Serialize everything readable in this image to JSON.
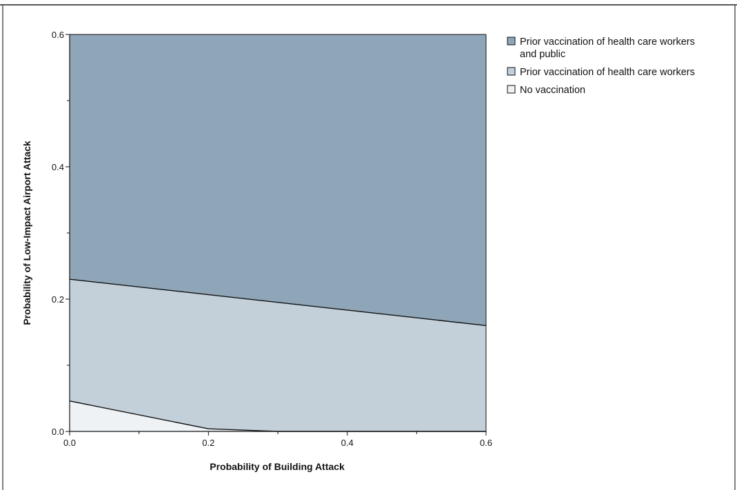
{
  "chart_data": {
    "type": "area",
    "title": "",
    "xlabel": "Probability of Building Attack",
    "ylabel": "Probability of Low-Impact Airport Attack",
    "xlim": [
      0,
      0.6
    ],
    "ylim": [
      0,
      0.6
    ],
    "x_ticks": [
      0.0,
      0.2,
      0.4,
      0.6
    ],
    "x_tick_labels": [
      "0.0",
      "0.2",
      "0.4",
      "0.6"
    ],
    "x_minor_ticks": [
      0.1,
      0.3,
      0.5
    ],
    "y_ticks": [
      0.0,
      0.2,
      0.4,
      0.6
    ],
    "y_tick_labels": [
      "0.0",
      "0.2",
      "0.4",
      "0.6"
    ],
    "y_minor_ticks": [
      0.1,
      0.3,
      0.5
    ],
    "grid": false,
    "legend_position": "top-right, outside plot",
    "regions": [
      {
        "name": "Prior vaccination of health care workers and public",
        "legend_lines": [
          "Prior vaccination of health care workers",
          "and public"
        ],
        "color": "#8fa5b8",
        "lower_boundary": {
          "x": [
            0.0,
            0.6
          ],
          "y": [
            0.23,
            0.16
          ]
        },
        "upper_boundary": {
          "x": [
            0.0,
            0.6
          ],
          "y": [
            0.6,
            0.6
          ]
        }
      },
      {
        "name": "Prior vaccination of health care workers",
        "legend_lines": [
          "Prior vaccination of health care workers"
        ],
        "color": "#c3d0da",
        "lower_boundary": {
          "x": [
            0.0,
            0.2,
            0.3,
            0.6
          ],
          "y": [
            0.046,
            0.004,
            0.0,
            0.0
          ]
        },
        "upper_boundary": {
          "x": [
            0.0,
            0.6
          ],
          "y": [
            0.23,
            0.16
          ]
        }
      },
      {
        "name": "No vaccination",
        "legend_lines": [
          "No vaccination"
        ],
        "color": "#eef2f5",
        "lower_boundary": {
          "x": [
            0.0,
            0.3
          ],
          "y": [
            0.0,
            0.0
          ]
        },
        "upper_boundary": {
          "x": [
            0.0,
            0.2,
            0.3
          ],
          "y": [
            0.046,
            0.004,
            0.0
          ]
        }
      }
    ]
  }
}
